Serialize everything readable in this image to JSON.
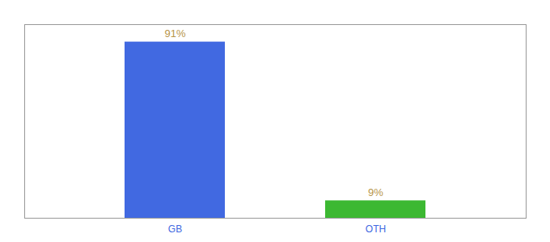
{
  "chart_data": {
    "type": "bar",
    "categories": [
      "GB",
      "OTH"
    ],
    "values": [
      91,
      9
    ],
    "value_labels": [
      "91%",
      "9%"
    ],
    "colors": [
      "#4169e1",
      "#3cb832"
    ],
    "ylim": [
      0,
      100
    ],
    "yticks": [],
    "tick_labels": "x",
    "data_labels": true,
    "grid": false
  }
}
